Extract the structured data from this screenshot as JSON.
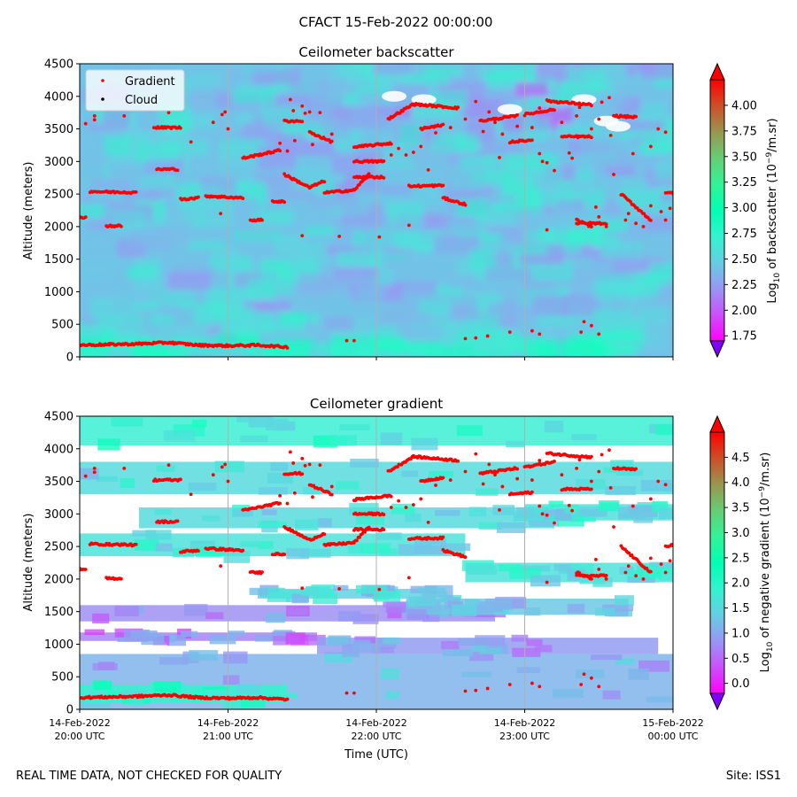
{
  "figure": {
    "suptitle": "CFACT 15-Feb-2022 00:00:00",
    "footer_left": "REAL TIME DATA, NOT CHECKED FOR QUALITY",
    "footer_right": "Site: ISS1"
  },
  "legend": {
    "gradient_label": "Gradient",
    "cloud_label": "Cloud"
  },
  "chart_data": [
    {
      "type": "heatmap",
      "title": "Ceilometer backscatter",
      "xlabel": "",
      "ylabel": "Altitude (meters)",
      "ylim": [
        0,
        4500
      ],
      "xlim_hours": [
        0,
        4
      ],
      "y_ticks": [
        "0",
        "500",
        "1000",
        "1500",
        "2000",
        "2500",
        "3000",
        "3500",
        "4000",
        "4500"
      ],
      "x_ticks": [],
      "colorbar": {
        "label": "Log10 of backscatter (10^-9/m.sr)",
        "min": 1.7,
        "max": 4.25,
        "ticks": [
          "1.75",
          "2.00",
          "2.25",
          "2.50",
          "2.75",
          "3.00",
          "3.25",
          "3.50",
          "3.75",
          "4.00"
        ],
        "tick_values": [
          1.75,
          2.0,
          2.25,
          2.5,
          2.75,
          3.0,
          3.25,
          3.5,
          3.75,
          4.0
        ]
      },
      "background_value": 2.4,
      "legend_entries": [
        "Gradient",
        "Cloud"
      ],
      "legend_position": "upper-left"
    },
    {
      "type": "heatmap",
      "title": "Ceilometer gradient",
      "xlabel": "Time (UTC)",
      "ylabel": "Altitude (meters)",
      "ylim": [
        0,
        4500
      ],
      "xlim_hours": [
        0,
        4
      ],
      "y_ticks": [
        "0",
        "500",
        "1000",
        "1500",
        "2000",
        "2500",
        "3000",
        "3500",
        "4000",
        "4500"
      ],
      "x_ticks": [
        [
          "14-Feb-2022",
          "20:00 UTC"
        ],
        [
          "14-Feb-2022",
          "21:00 UTC"
        ],
        [
          "14-Feb-2022",
          "22:00 UTC"
        ],
        [
          "14-Feb-2022",
          "23:00 UTC"
        ],
        [
          "15-Feb-2022",
          "00:00 UTC"
        ]
      ],
      "colorbar": {
        "label": "Log10 of negative gradient (10^-9/m.sr)",
        "min": -0.2,
        "max": 5.0,
        "ticks": [
          "0.0",
          "0.5",
          "1.0",
          "1.5",
          "2.0",
          "2.5",
          "3.0",
          "3.5",
          "4.0",
          "4.5"
        ],
        "tick_values": [
          0,
          0.5,
          1.0,
          1.5,
          2.0,
          2.5,
          3.0,
          3.5,
          4.0,
          4.5
        ]
      },
      "bands": [
        {
          "t0": 0.0,
          "t1": 4.0,
          "y0": 0,
          "y1": 850,
          "v": 1.1
        },
        {
          "t0": 0.0,
          "t1": 1.4,
          "y0": 100,
          "y1": 380,
          "v": 1.9
        },
        {
          "t0": 0.0,
          "t1": 2.8,
          "y0": 1350,
          "y1": 1600,
          "v": 0.8
        },
        {
          "t0": 0.0,
          "t1": 1.6,
          "y0": 1050,
          "y1": 1180,
          "v": 0.7
        },
        {
          "t0": 0.0,
          "t1": 2.6,
          "y0": 2350,
          "y1": 2700,
          "v": 1.6
        },
        {
          "t0": 0.0,
          "t1": 4.0,
          "y0": 3300,
          "y1": 3800,
          "v": 1.5
        },
        {
          "t0": 0.0,
          "t1": 4.0,
          "y0": 4050,
          "y1": 4500,
          "v": 1.8
        },
        {
          "t0": 0.4,
          "t1": 3.2,
          "y0": 2780,
          "y1": 3100,
          "v": 1.5
        },
        {
          "t0": 2.6,
          "t1": 4.0,
          "y0": 1950,
          "y1": 2250,
          "v": 1.6
        },
        {
          "t0": 2.2,
          "t1": 3.7,
          "y0": 1450,
          "y1": 1700,
          "v": 1.3
        },
        {
          "t0": 1.6,
          "t1": 3.9,
          "y0": 850,
          "y1": 1100,
          "v": 0.9
        },
        {
          "t0": 1.2,
          "t1": 2.4,
          "y0": 1700,
          "y1": 1850,
          "v": 1.4
        },
        {
          "t0": 3.0,
          "t1": 4.0,
          "y0": 2900,
          "y1": 3150,
          "v": 1.6
        }
      ]
    }
  ],
  "gradient_series": [
    {
      "t": [
        0.0,
        0.2,
        0.4,
        0.6,
        0.8,
        1.0,
        1.2,
        1.4
      ],
      "alt": [
        180,
        190,
        200,
        220,
        180,
        170,
        180,
        150
      ]
    },
    {
      "t": [
        0.07,
        0.2,
        0.3,
        0.38
      ],
      "alt": [
        2540,
        2530,
        2530,
        2520
      ]
    },
    {
      "t": [
        0.0,
        0.04
      ],
      "alt": [
        2150,
        2140
      ]
    },
    {
      "t": [
        0.18,
        0.28
      ],
      "alt": [
        2010,
        2010
      ]
    },
    {
      "t": [
        0.52,
        0.66
      ],
      "alt": [
        2880,
        2880
      ]
    },
    {
      "t": [
        0.5,
        0.68
      ],
      "alt": [
        3520,
        3520
      ]
    },
    {
      "t": [
        0.68,
        0.8
      ],
      "alt": [
        2420,
        2440
      ]
    },
    {
      "t": [
        0.85,
        1.1
      ],
      "alt": [
        2470,
        2440
      ]
    },
    {
      "t": [
        1.1,
        1.35
      ],
      "alt": [
        3050,
        3170
      ]
    },
    {
      "t": [
        1.15,
        1.23
      ],
      "alt": [
        2100,
        2100
      ]
    },
    {
      "t": [
        1.3,
        1.38
      ],
      "alt": [
        2390,
        2380
      ]
    },
    {
      "t": [
        1.38,
        1.5
      ],
      "alt": [
        3620,
        3620
      ]
    },
    {
      "t": [
        1.38,
        1.55,
        1.65
      ],
      "alt": [
        2800,
        2600,
        2700
      ]
    },
    {
      "t": [
        1.65,
        1.85,
        1.95
      ],
      "alt": [
        2520,
        2560,
        2800
      ]
    },
    {
      "t": [
        1.55,
        1.7
      ],
      "alt": [
        3450,
        3300
      ]
    },
    {
      "t": [
        1.85,
        2.1
      ],
      "alt": [
        3220,
        3280
      ]
    },
    {
      "t": [
        1.85,
        2.05
      ],
      "alt": [
        3000,
        3000
      ]
    },
    {
      "t": [
        1.85,
        2.05
      ],
      "alt": [
        2760,
        2760
      ]
    },
    {
      "t": [
        2.08,
        2.25
      ],
      "alt": [
        3650,
        3880
      ]
    },
    {
      "t": [
        2.25,
        2.55
      ],
      "alt": [
        3880,
        3820
      ]
    },
    {
      "t": [
        2.22,
        2.45
      ],
      "alt": [
        2620,
        2630
      ]
    },
    {
      "t": [
        2.3,
        2.45
      ],
      "alt": [
        3500,
        3560
      ]
    },
    {
      "t": [
        2.45,
        2.6
      ],
      "alt": [
        2440,
        2340
      ]
    },
    {
      "t": [
        2.7,
        2.95
      ],
      "alt": [
        3620,
        3700
      ]
    },
    {
      "t": [
        2.9,
        3.05
      ],
      "alt": [
        3300,
        3330
      ]
    },
    {
      "t": [
        3.0,
        3.2
      ],
      "alt": [
        3720,
        3800
      ]
    },
    {
      "t": [
        3.15,
        3.45
      ],
      "alt": [
        3930,
        3870
      ]
    },
    {
      "t": [
        3.25,
        3.45
      ],
      "alt": [
        3380,
        3380
      ]
    },
    {
      "t": [
        3.35,
        3.45
      ],
      "alt": [
        2100,
        2000
      ]
    },
    {
      "t": [
        3.6,
        3.75
      ],
      "alt": [
        3700,
        3680
      ]
    },
    {
      "t": [
        3.65,
        3.85
      ],
      "alt": [
        2500,
        2100
      ]
    },
    {
      "t": [
        3.35,
        3.55
      ],
      "alt": [
        2050,
        2050
      ]
    },
    {
      "t": [
        3.95,
        4.0
      ],
      "alt": [
        2510,
        2520
      ]
    }
  ],
  "gradient_points": [
    [
      0.04,
      3580
    ],
    [
      0.1,
      3640
    ],
    [
      0.1,
      3700
    ],
    [
      0.3,
      3700
    ],
    [
      0.6,
      3750
    ],
    [
      0.9,
      3600
    ],
    [
      0.75,
      3300
    ],
    [
      1.0,
      3500
    ],
    [
      1.5,
      3850
    ],
    [
      1.42,
      3950
    ],
    [
      1.44,
      3780
    ],
    [
      1.55,
      3760
    ],
    [
      1.62,
      3750
    ],
    [
      1.7,
      3420
    ],
    [
      1.45,
      3320
    ],
    [
      1.4,
      3160
    ],
    [
      1.5,
      1860
    ],
    [
      1.75,
      1850
    ],
    [
      2.02,
      1840
    ],
    [
      1.8,
      250
    ],
    [
      1.85,
      250
    ],
    [
      2.22,
      2020
    ],
    [
      2.1,
      3100
    ],
    [
      2.2,
      3100
    ],
    [
      2.15,
      3200
    ],
    [
      2.25,
      3140
    ],
    [
      2.3,
      3230
    ],
    [
      2.35,
      2870
    ],
    [
      2.4,
      3440
    ],
    [
      2.5,
      3520
    ],
    [
      2.6,
      3650
    ],
    [
      2.67,
      3920
    ],
    [
      2.72,
      3460
    ],
    [
      2.76,
      3760
    ],
    [
      2.8,
      3600
    ],
    [
      2.83,
      3060
    ],
    [
      2.85,
      3420
    ],
    [
      2.95,
      3540
    ],
    [
      3.1,
      3820
    ],
    [
      3.05,
      3520
    ],
    [
      3.1,
      3120
    ],
    [
      3.12,
      3000
    ],
    [
      3.15,
      2980
    ],
    [
      3.2,
      2860
    ],
    [
      3.25,
      3600
    ],
    [
      3.35,
      3700
    ],
    [
      3.5,
      3650
    ],
    [
      3.45,
      3500
    ],
    [
      3.58,
      3400
    ],
    [
      3.6,
      2800
    ],
    [
      3.9,
      3500
    ],
    [
      3.95,
      3450
    ],
    [
      3.85,
      3230
    ],
    [
      3.8,
      2000
    ],
    [
      3.85,
      2320
    ],
    [
      3.92,
      2230
    ],
    [
      3.95,
      2100
    ],
    [
      3.98,
      2280
    ],
    [
      2.6,
      280
    ],
    [
      2.67,
      290
    ],
    [
      2.75,
      320
    ],
    [
      2.9,
      380
    ],
    [
      3.05,
      400
    ],
    [
      3.1,
      350
    ],
    [
      3.4,
      540
    ],
    [
      3.45,
      480
    ],
    [
      3.38,
      380
    ],
    [
      3.5,
      350
    ],
    [
      3.37,
      3830
    ],
    [
      3.52,
      3910
    ],
    [
      3.57,
      3980
    ],
    [
      3.3,
      3130
    ],
    [
      3.32,
      3050
    ],
    [
      3.48,
      2300
    ],
    [
      3.5,
      2150
    ],
    [
      3.55,
      2000
    ],
    [
      3.68,
      2100
    ],
    [
      3.7,
      2200
    ],
    [
      3.75,
      2050
    ],
    [
      3.72,
      3680
    ],
    [
      3.73,
      3120
    ],
    [
      3.15,
      1950
    ],
    [
      0.96,
      3720
    ],
    [
      0.98,
      3760
    ],
    [
      0.95,
      2200
    ],
    [
      1.35,
      3280
    ],
    [
      1.52,
      3740
    ],
    [
      1.57,
      3260
    ]
  ]
}
